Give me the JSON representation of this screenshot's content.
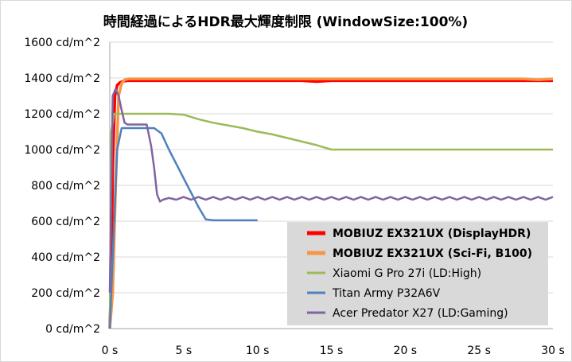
{
  "chart_data": {
    "type": "line",
    "title": "時間経過によるHDR最大輝度制限 (WindowSize:100%)",
    "xlim": [
      0,
      30
    ],
    "ylim": [
      0,
      1600
    ],
    "xticks": [
      0,
      5,
      10,
      15,
      20,
      25,
      30
    ],
    "yticks": [
      0,
      200,
      400,
      600,
      800,
      1000,
      1200,
      1400,
      1600
    ],
    "xtick_labels": [
      "0 s",
      "5 s",
      "10 s",
      "15 s",
      "20 s",
      "25 s",
      "30 s"
    ],
    "ytick_labels": [
      "0 cd/m^2",
      "200 cd/m^2",
      "400 cd/m^2",
      "600 cd/m^2",
      "800 cd/m^2",
      "1000 cd/m^2",
      "1200 cd/m^2",
      "1400 cd/m^2",
      "1600 cd/m^2"
    ],
    "grid": "horizontal",
    "legend_position": "bottom-right",
    "series": [
      {
        "name": "MOBIUZ EX321UX (DisplayHDR)",
        "color": "#ff0000",
        "bold": true,
        "x": [
          0,
          0.1,
          0.2,
          0.35,
          0.5,
          0.7,
          0.9,
          1.2,
          2,
          5,
          10,
          13,
          14,
          15,
          20,
          25,
          30
        ],
        "y": [
          0,
          300,
          900,
          1300,
          1360,
          1375,
          1382,
          1385,
          1385,
          1385,
          1385,
          1385,
          1380,
          1385,
          1385,
          1385,
          1385
        ]
      },
      {
        "name": "MOBIUZ EX321UX (Sci-Fi, B100)",
        "color": "#f79646",
        "bold": true,
        "x": [
          0,
          0.2,
          0.4,
          0.6,
          0.8,
          1.0,
          1.3,
          2,
          5,
          10,
          15,
          20,
          25,
          28,
          29,
          30
        ],
        "y": [
          0,
          200,
          800,
          1300,
          1370,
          1390,
          1395,
          1395,
          1395,
          1395,
          1395,
          1395,
          1395,
          1395,
          1390,
          1395
        ]
      },
      {
        "name": "Xiaomi G Pro 27i (LD:High)",
        "color": "#9bbb59",
        "bold": false,
        "x": [
          0,
          0.1,
          0.3,
          0.5,
          1,
          2,
          4,
          5,
          6,
          7,
          8,
          9,
          10,
          11,
          12,
          13,
          14,
          15,
          16,
          20,
          25,
          30
        ],
        "y": [
          0,
          1100,
          1200,
          1200,
          1200,
          1200,
          1200,
          1195,
          1170,
          1150,
          1135,
          1120,
          1100,
          1085,
          1065,
          1045,
          1025,
          1000,
          1000,
          1000,
          1000,
          1000
        ]
      },
      {
        "name": "Titan Army P32A6V",
        "color": "#4f81bd",
        "bold": false,
        "x": [
          0,
          0.25,
          0.5,
          0.8,
          1,
          2,
          3,
          3.5,
          4,
          4.5,
          5,
          5.5,
          6,
          6.5,
          7,
          8,
          9,
          10
        ],
        "y": [
          0,
          500,
          1000,
          1120,
          1120,
          1120,
          1120,
          1090,
          1000,
          920,
          840,
          760,
          680,
          610,
          605,
          605,
          605,
          605
        ]
      },
      {
        "name": "Acer Predator X27 (LD:Gaming)",
        "color": "#8064a2",
        "bold": false,
        "x": [
          0,
          0.2,
          0.4,
          0.6,
          0.8,
          1.0,
          1.2,
          1.5,
          2,
          2.5,
          2.8,
          3.0,
          3.2,
          3.4,
          3.6,
          4,
          4.5,
          5,
          5.5,
          6,
          6.5,
          7,
          7.5,
          8,
          8.5,
          9,
          9.5,
          10,
          10.5,
          11,
          11.5,
          12,
          12.5,
          13,
          13.5,
          14,
          14.5,
          15,
          15.5,
          16,
          16.5,
          17,
          17.5,
          18,
          18.5,
          19,
          19.5,
          20,
          20.5,
          21,
          21.5,
          22,
          22.5,
          23,
          23.5,
          24,
          24.5,
          25,
          25.5,
          26,
          26.5,
          27,
          27.5,
          28,
          28.5,
          29,
          29.5,
          30
        ],
        "y": [
          200,
          1300,
          1340,
          1300,
          1220,
          1150,
          1140,
          1140,
          1140,
          1140,
          1020,
          900,
          750,
          710,
          720,
          730,
          720,
          735,
          720,
          735,
          720,
          735,
          720,
          735,
          720,
          735,
          720,
          735,
          720,
          735,
          720,
          735,
          720,
          735,
          720,
          735,
          720,
          735,
          720,
          735,
          720,
          735,
          720,
          735,
          720,
          735,
          720,
          735,
          720,
          735,
          720,
          735,
          720,
          735,
          720,
          735,
          720,
          735,
          720,
          735,
          720,
          735,
          720,
          735,
          720,
          735,
          720,
          735
        ]
      }
    ]
  }
}
